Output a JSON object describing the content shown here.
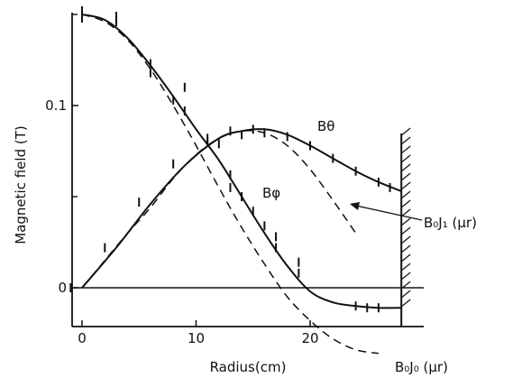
{
  "chart_data": {
    "type": "line",
    "xlabel": "Radius(cm)",
    "ylabel": "Magnetic field (T)",
    "xlim": [
      -1,
      29
    ],
    "ylim": [
      -0.035,
      0.165
    ],
    "x_ticks": [
      0,
      10,
      20
    ],
    "y_ticks": [
      0,
      0.1
    ],
    "y_minor_ticks": [
      0.05,
      0.15
    ],
    "x_tick_labels": [
      "0",
      "10",
      "20"
    ],
    "y_tick_labels": [
      "0",
      "0.1"
    ],
    "wall_x": 28,
    "series": [
      {
        "name": "Bφ",
        "style": "solid",
        "x": [
          0,
          2,
          4,
          6,
          8,
          10,
          12,
          14,
          16,
          18,
          20,
          22,
          24,
          26,
          28
        ],
        "y": [
          0.15,
          0.147,
          0.137,
          0.122,
          0.105,
          0.087,
          0.07,
          0.05,
          0.03,
          0.012,
          -0.002,
          -0.008,
          -0.01,
          -0.011,
          -0.011
        ]
      },
      {
        "name": "Bθ",
        "style": "solid",
        "x": [
          0,
          3,
          6,
          9,
          12,
          14,
          16,
          18,
          20,
          22,
          24,
          26,
          28
        ],
        "y": [
          0.0,
          0.022,
          0.046,
          0.067,
          0.082,
          0.086,
          0.087,
          0.084,
          0.078,
          0.071,
          0.064,
          0.058,
          0.053
        ]
      },
      {
        "name": "B₀J₀ (μr)",
        "style": "dashed",
        "x": [
          0,
          2,
          4,
          6,
          8,
          10,
          12,
          14,
          16,
          18,
          20,
          22,
          24,
          26
        ],
        "y": [
          0.15,
          0.146,
          0.136,
          0.12,
          0.1,
          0.078,
          0.055,
          0.033,
          0.013,
          -0.005,
          -0.018,
          -0.028,
          -0.034,
          -0.036
        ]
      },
      {
        "name": "B₀J₁ (μr)",
        "style": "dashed",
        "x": [
          0,
          2,
          4,
          6,
          8,
          10,
          12,
          14,
          16,
          18,
          20,
          22,
          24
        ],
        "y": [
          0.0,
          0.015,
          0.03,
          0.044,
          0.06,
          0.073,
          0.082,
          0.086,
          0.085,
          0.078,
          0.065,
          0.048,
          0.03
        ]
      }
    ],
    "points": [
      {
        "x": 0,
        "y": 0.152
      },
      {
        "x": 0,
        "y": 0.148
      },
      {
        "x": 3,
        "y": 0.149
      },
      {
        "x": 3,
        "y": 0.146
      },
      {
        "x": 6,
        "y": 0.123
      },
      {
        "x": 6,
        "y": 0.118
      },
      {
        "x": 8,
        "y": 0.103
      },
      {
        "x": 9,
        "y": 0.11
      },
      {
        "x": 9,
        "y": 0.097
      },
      {
        "x": 11,
        "y": 0.082
      },
      {
        "x": 12,
        "y": 0.079
      },
      {
        "x": 13,
        "y": 0.062
      },
      {
        "x": 13,
        "y": 0.055
      },
      {
        "x": 14,
        "y": 0.05
      },
      {
        "x": 15,
        "y": 0.042
      },
      {
        "x": 16,
        "y": 0.034
      },
      {
        "x": 17,
        "y": 0.028
      },
      {
        "x": 17,
        "y": 0.022
      },
      {
        "x": 19,
        "y": 0.008
      },
      {
        "x": 19,
        "y": 0.014
      },
      {
        "x": 24,
        "y": -0.01
      },
      {
        "x": 25,
        "y": -0.011
      },
      {
        "x": 26,
        "y": -0.011
      },
      {
        "x": -1,
        "y": 0.0
      },
      {
        "x": 2,
        "y": 0.022
      },
      {
        "x": 5,
        "y": 0.047
      },
      {
        "x": 8,
        "y": 0.068
      },
      {
        "x": 11,
        "y": 0.08
      },
      {
        "x": 13,
        "y": 0.086
      },
      {
        "x": 14,
        "y": 0.084
      },
      {
        "x": 15,
        "y": 0.087
      },
      {
        "x": 16,
        "y": 0.085
      },
      {
        "x": 18,
        "y": 0.083
      },
      {
        "x": 20,
        "y": 0.078
      },
      {
        "x": 22,
        "y": 0.071
      },
      {
        "x": 24,
        "y": 0.064
      },
      {
        "x": 26,
        "y": 0.058
      },
      {
        "x": 27,
        "y": 0.055
      }
    ],
    "annotations": [
      {
        "text": "Bθ"
      },
      {
        "text": "Bφ"
      },
      {
        "text": "B₀J₁ (μr)"
      },
      {
        "text": "B₀J₀ (μr)"
      }
    ]
  }
}
